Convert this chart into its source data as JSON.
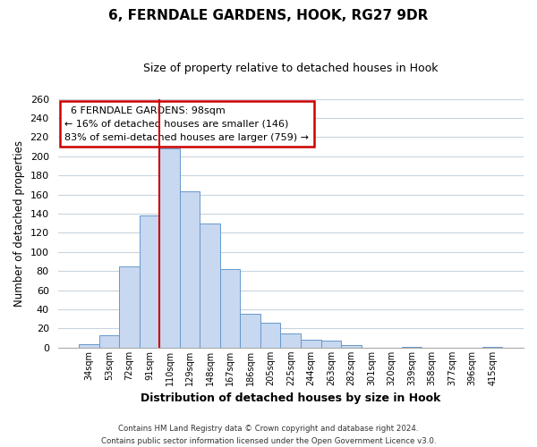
{
  "title": "6, FERNDALE GARDENS, HOOK, RG27 9DR",
  "subtitle": "Size of property relative to detached houses in Hook",
  "xlabel": "Distribution of detached houses by size in Hook",
  "ylabel": "Number of detached properties",
  "bar_color": "#c8d8f0",
  "bar_edge_color": "#6699cc",
  "categories": [
    "34sqm",
    "53sqm",
    "72sqm",
    "91sqm",
    "110sqm",
    "129sqm",
    "148sqm",
    "167sqm",
    "186sqm",
    "205sqm",
    "225sqm",
    "244sqm",
    "263sqm",
    "282sqm",
    "301sqm",
    "320sqm",
    "339sqm",
    "358sqm",
    "377sqm",
    "396sqm",
    "415sqm"
  ],
  "values": [
    4,
    13,
    85,
    138,
    208,
    163,
    130,
    82,
    35,
    26,
    15,
    8,
    7,
    3,
    0,
    0,
    1,
    0,
    0,
    0,
    1
  ],
  "ylim": [
    0,
    260
  ],
  "yticks": [
    0,
    20,
    40,
    60,
    80,
    100,
    120,
    140,
    160,
    180,
    200,
    220,
    240,
    260
  ],
  "vline_x": 4.0,
  "vline_color": "#cc0000",
  "annotation_title": "6 FERNDALE GARDENS: 98sqm",
  "annotation_line1": "← 16% of detached houses are smaller (146)",
  "annotation_line2": "83% of semi-detached houses are larger (759) →",
  "footer_line1": "Contains HM Land Registry data © Crown copyright and database right 2024.",
  "footer_line2": "Contains public sector information licensed under the Open Government Licence v3.0.",
  "background_color": "#ffffff",
  "grid_color": "#c8d4e0"
}
